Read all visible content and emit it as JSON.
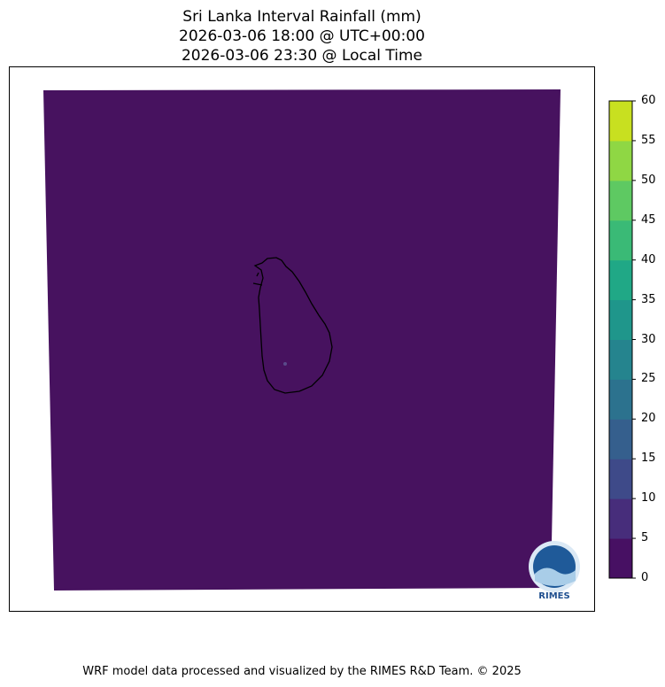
{
  "title_lines": [
    "Sri Lanka Interval Rainfall (mm)",
    "2026-03-06 18:00 @ UTC+00:00",
    "2026-03-06 23:30 @ Local Time"
  ],
  "map": {
    "field_color": "#47125f",
    "coastline_color": "#000000",
    "region": "Sri Lanka"
  },
  "colorbar": {
    "colormap": "viridis",
    "levels": [
      0,
      5,
      10,
      15,
      20,
      25,
      30,
      35,
      40,
      45,
      50,
      55,
      60
    ],
    "tick_labels": [
      "0",
      "5",
      "10",
      "15",
      "20",
      "25",
      "30",
      "35",
      "40",
      "45",
      "50",
      "55",
      "60"
    ],
    "colors": [
      "#471063",
      "#472d7b",
      "#3e4a89",
      "#355f8d",
      "#2c728e",
      "#25848e",
      "#1f968b",
      "#20a886",
      "#3aba76",
      "#5ec962",
      "#8fd744",
      "#c8e020"
    ]
  },
  "logo": {
    "text": "RIMES"
  },
  "credit": "WRF model data processed and visualized by the RIMES R&D Team. © 2025"
}
